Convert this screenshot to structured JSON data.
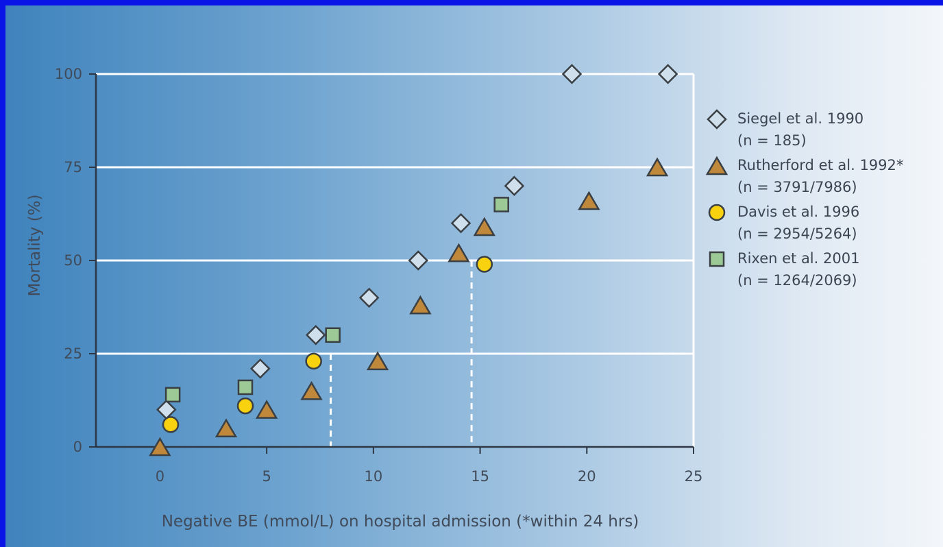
{
  "chart_data": {
    "type": "scatter",
    "title": "",
    "xlabel": "Negative BE (mmol/L) on hospital admission (*within 24 hrs)",
    "ylabel": "Mortality (%)",
    "xlim": [
      -3,
      25
    ],
    "ylim": [
      0,
      100
    ],
    "xticks": [
      "0",
      "5",
      "10",
      "15",
      "20",
      "25"
    ],
    "yticks": [
      "0",
      "25",
      "50",
      "75",
      "100"
    ],
    "grid": "horizontal",
    "legend_position": "right",
    "series": [
      {
        "name": "Siegel et al. 1990",
        "subtitle": "(n = 185)",
        "marker": "diamond",
        "color": "#cfe0ec",
        "points": [
          [
            0.3,
            10
          ],
          [
            4.7,
            21
          ],
          [
            7.3,
            30
          ],
          [
            9.8,
            40
          ],
          [
            12.1,
            50
          ],
          [
            14.1,
            60
          ],
          [
            16.6,
            70
          ],
          [
            19.3,
            100
          ],
          [
            23.8,
            100
          ]
        ]
      },
      {
        "name": "Rutherford et al. 1992*",
        "subtitle": "(n = 3791/7986)",
        "marker": "triangle",
        "color": "#c0883a",
        "points": [
          [
            0,
            0
          ],
          [
            3.1,
            5
          ],
          [
            5,
            10
          ],
          [
            7.1,
            15
          ],
          [
            10.2,
            23
          ],
          [
            12.2,
            38
          ],
          [
            14,
            52
          ],
          [
            15.2,
            59
          ],
          [
            20.1,
            66
          ],
          [
            23.3,
            75
          ]
        ]
      },
      {
        "name": "Davis et al. 1996",
        "subtitle": "(n = 2954/5264)",
        "marker": "circle",
        "color": "#f8d20e",
        "points": [
          [
            0.5,
            6
          ],
          [
            4,
            11
          ],
          [
            7.2,
            23
          ],
          [
            15.2,
            49
          ]
        ]
      },
      {
        "name": "Rixen et al. 2001",
        "subtitle": "(n = 1264/2069)",
        "marker": "square",
        "color": "#9cc995",
        "points": [
          [
            0.6,
            14
          ],
          [
            4,
            16
          ],
          [
            8.1,
            30
          ],
          [
            16,
            65
          ]
        ]
      }
    ],
    "reference_lines": [
      {
        "x": 8,
        "y": 25,
        "style": "dashed"
      },
      {
        "x": 14.6,
        "y": 50,
        "style": "dashed"
      }
    ]
  }
}
